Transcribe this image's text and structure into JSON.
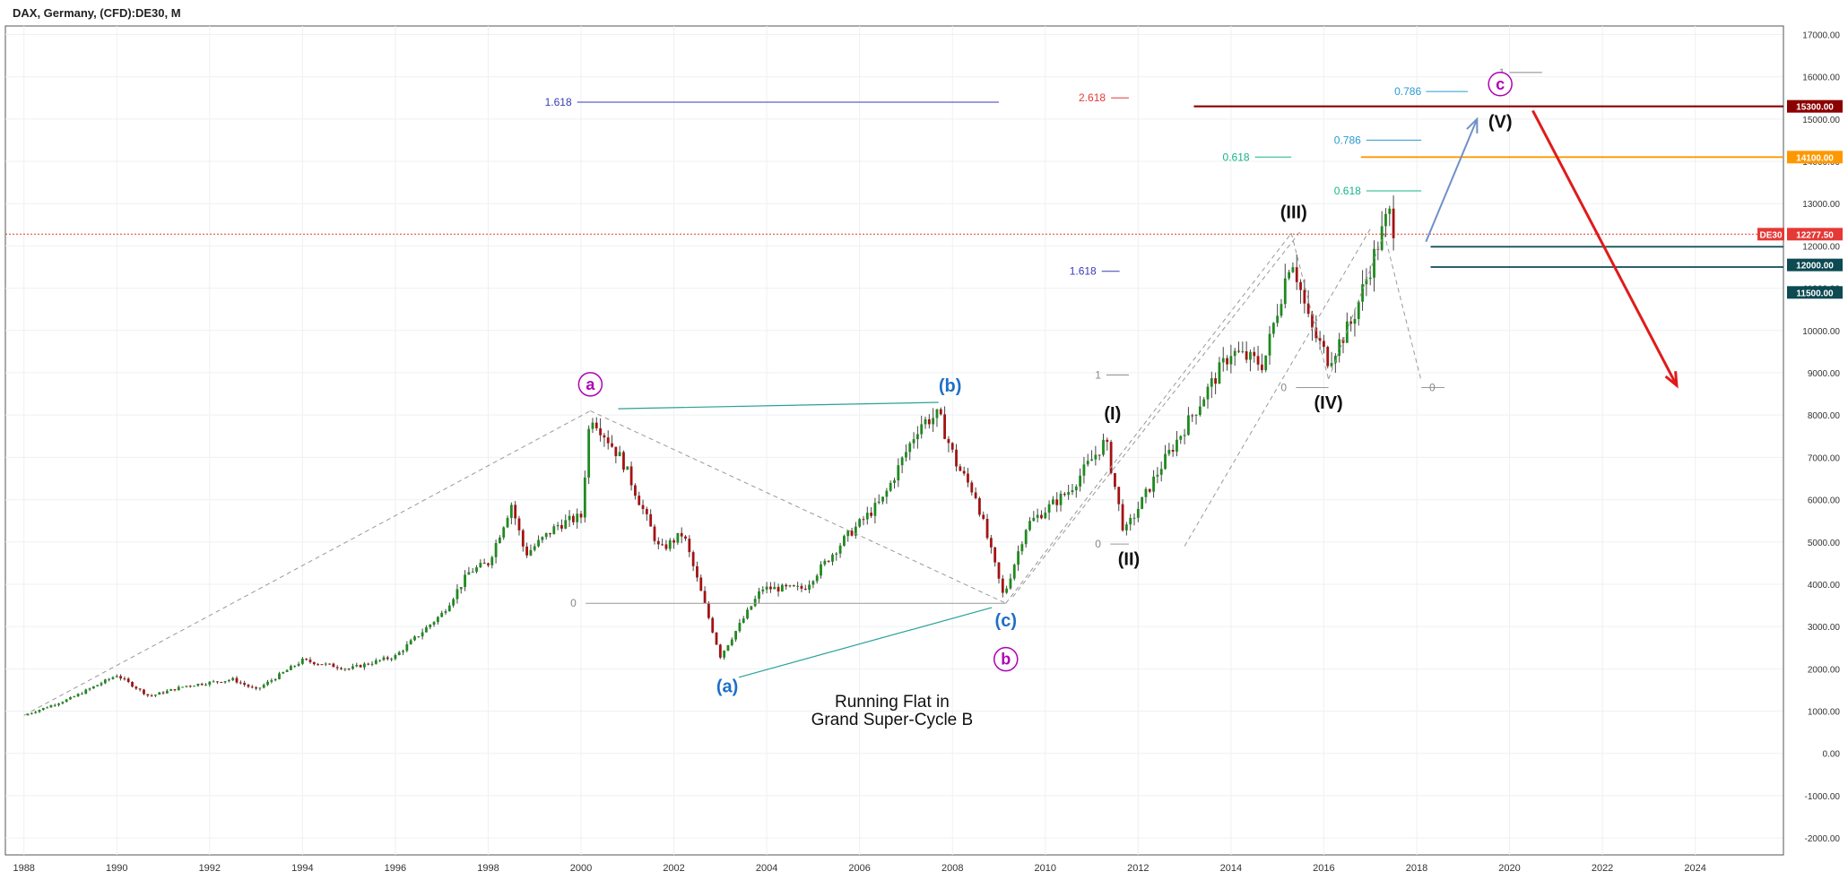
{
  "header": {
    "title": "DAX, Germany, (CFD):DE30, M"
  },
  "chart_data": {
    "type": "candlestick",
    "title": "DAX, Germany, (CFD):DE30, M",
    "symbol": "DE30",
    "last_price": 12277.5,
    "last_price_label": "12277.50",
    "x_axis": {
      "range": [
        1987.6,
        2025.9
      ],
      "ticks": [
        "1988",
        "1990",
        "1992",
        "1994",
        "1996",
        "1998",
        "2000",
        "2002",
        "2004",
        "2006",
        "2008",
        "2010",
        "2012",
        "2014",
        "2016",
        "2018",
        "2020",
        "2022",
        "2024"
      ]
    },
    "y_axis": {
      "range": [
        -2400,
        17200
      ],
      "ticks": [
        "-2000.00",
        "-1000.00",
        "0.00",
        "1000.00",
        "2000.00",
        "3000.00",
        "4000.00",
        "5000.00",
        "6000.00",
        "7000.00",
        "8000.00",
        "9000.00",
        "10000.00",
        "11000.00",
        "12000.00",
        "13000.00",
        "14000.00",
        "15000.00",
        "16000.00",
        "17000.00"
      ]
    },
    "grid": true,
    "price_tags": [
      {
        "value": 15300,
        "label": "15300.00",
        "color": "#8b0000"
      },
      {
        "value": 14100,
        "label": "14100.00",
        "color": "#ff9800"
      },
      {
        "value": 12000,
        "label": "12000.00",
        "color": "#0d4a52"
      },
      {
        "value": 11500,
        "label": "11500.00",
        "color": "#0d4a52"
      }
    ],
    "anchors": [
      [
        1988.0,
        900
      ],
      [
        1989.0,
        1300
      ],
      [
        1990.0,
        1850
      ],
      [
        1990.7,
        1350
      ],
      [
        1991.5,
        1600
      ],
      [
        1992.5,
        1750
      ],
      [
        1993.0,
        1500
      ],
      [
        1994.0,
        2200
      ],
      [
        1995.0,
        2000
      ],
      [
        1996.0,
        2300
      ],
      [
        1997.0,
        3300
      ],
      [
        1997.6,
        4300
      ],
      [
        1998.0,
        4500
      ],
      [
        1998.5,
        5900
      ],
      [
        1998.8,
        4700
      ],
      [
        1999.5,
        5400
      ],
      [
        2000.0,
        5600
      ],
      [
        2000.2,
        8050
      ],
      [
        2000.9,
        6900
      ],
      [
        2001.7,
        4800
      ],
      [
        2002.2,
        5200
      ],
      [
        2003.0,
        2300
      ],
      [
        2003.9,
        3900
      ],
      [
        2004.8,
        3900
      ],
      [
        2005.7,
        5100
      ],
      [
        2006.5,
        6000
      ],
      [
        2007.3,
        7800
      ],
      [
        2007.7,
        8000
      ],
      [
        2008.1,
        6800
      ],
      [
        2008.5,
        6100
      ],
      [
        2009.1,
        3700
      ],
      [
        2009.6,
        5400
      ],
      [
        2010.5,
        6200
      ],
      [
        2011.3,
        7400
      ],
      [
        2011.7,
        5200
      ],
      [
        2012.5,
        6800
      ],
      [
        2013.0,
        7700
      ],
      [
        2014.0,
        9500
      ],
      [
        2014.7,
        9200
      ],
      [
        2015.3,
        11800
      ],
      [
        2015.7,
        10100
      ],
      [
        2016.1,
        9300
      ],
      [
        2016.6,
        10200
      ],
      [
        2017.0,
        11500
      ],
      [
        2017.4,
        12800
      ],
      [
        2017.55,
        12277
      ]
    ],
    "wave_labels": [
      {
        "text": "a",
        "x": 2000.2,
        "y": 8600,
        "color": "#b000b5",
        "circle": true
      },
      {
        "text": "(b)",
        "x": 2007.95,
        "y": 8550,
        "color": "#1e6fc8"
      },
      {
        "text": "(a)",
        "x": 2003.15,
        "y": 1450,
        "color": "#1e6fc8"
      },
      {
        "text": "(c)",
        "x": 2009.15,
        "y": 3000,
        "color": "#1e6fc8"
      },
      {
        "text": "b",
        "x": 2009.15,
        "y": 2100,
        "color": "#b000b5",
        "circle": true
      },
      {
        "text": "(I)",
        "x": 2011.45,
        "y": 7900,
        "color": "#111111"
      },
      {
        "text": "(II)",
        "x": 2011.8,
        "y": 4450,
        "color": "#111111"
      },
      {
        "text": "(III)",
        "x": 2015.35,
        "y": 12650,
        "color": "#111111"
      },
      {
        "text": "(IV)",
        "x": 2016.1,
        "y": 8150,
        "color": "#111111"
      },
      {
        "text": "(V)",
        "x": 2019.8,
        "y": 14800,
        "color": "#111111"
      },
      {
        "text": "c",
        "x": 2019.8,
        "y": 15700,
        "color": "#b000b5",
        "circle": true
      }
    ],
    "fib_labels": [
      {
        "text": "1.618",
        "x": 1999.8,
        "y": 15400,
        "color": "#3a3ab8",
        "line_to": 2009.0
      },
      {
        "text": "2.618",
        "x": 2011.3,
        "y": 15500,
        "color": "#e53935",
        "line_to": 2011.8
      },
      {
        "text": "0.786",
        "x": 2018.1,
        "y": 15650,
        "color": "#2a9ad0",
        "line_from": 2018.2,
        "line_to": 2019.1
      },
      {
        "text": "1",
        "x": 2019.9,
        "y": 16100,
        "color": "#888888",
        "line_from": 2020.0,
        "line_to": 2020.7
      },
      {
        "text": "0.786",
        "x": 2016.8,
        "y": 14500,
        "color": "#2a9ad0",
        "line_to": 2018.1
      },
      {
        "text": "0.618",
        "x": 2014.4,
        "y": 14100,
        "color": "#19b38a",
        "line_to": 2015.3
      },
      {
        "text": "0.618",
        "x": 2016.8,
        "y": 13300,
        "color": "#19b38a",
        "line_to": 2018.1
      },
      {
        "text": "1.618",
        "x": 2011.1,
        "y": 11400,
        "color": "#3a3ab8",
        "line_to": 2011.6
      },
      {
        "text": "1",
        "x": 2011.2,
        "y": 8950,
        "color": "#888888",
        "line_to": 2011.8
      },
      {
        "text": "0",
        "x": 1999.9,
        "y": 3550,
        "color": "#888888"
      },
      {
        "text": "0",
        "x": 2011.2,
        "y": 4950,
        "color": "#888888"
      },
      {
        "text": "0",
        "x": 2015.2,
        "y": 8650,
        "color": "#888888"
      },
      {
        "text": "0",
        "x": 2018.4,
        "y": 8650,
        "color": "#888888"
      }
    ],
    "annotation": {
      "lines": [
        "Running Flat in",
        "Grand Super-Cycle B"
      ],
      "x": 2006.7,
      "y": 1100
    }
  }
}
